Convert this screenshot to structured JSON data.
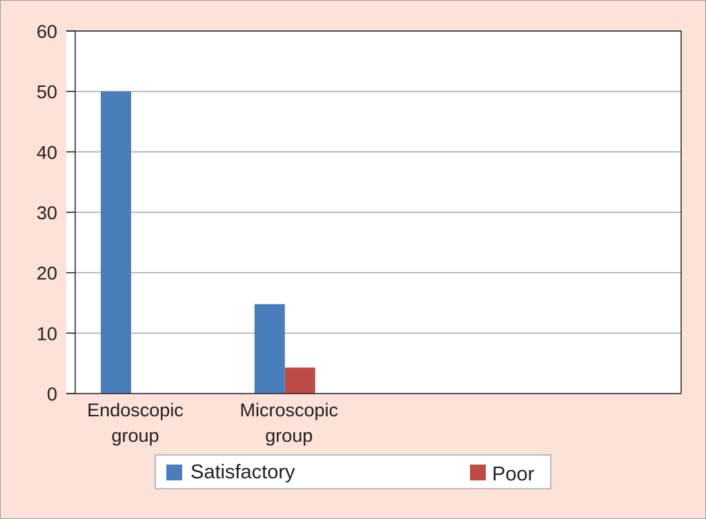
{
  "chart_data": {
    "type": "bar",
    "categories": [
      [
        "Endoscopic",
        "group"
      ],
      [
        "Microscopic",
        "group"
      ],
      [
        "",
        ""
      ],
      [
        "",
        ""
      ]
    ],
    "series": [
      {
        "name": "Satisfactory",
        "color": "#4a7ebb",
        "values": [
          50,
          14.8,
          null,
          null
        ]
      },
      {
        "name": "Poor",
        "color": "#be4b48",
        "values": [
          0,
          4.3,
          null,
          null
        ]
      }
    ],
    "ylim": [
      0,
      60
    ],
    "yticks": [
      0,
      10,
      20,
      30,
      40,
      50,
      60
    ],
    "grid": true,
    "legend": "bottom",
    "xlabel": "",
    "ylabel": "",
    "title": ""
  }
}
